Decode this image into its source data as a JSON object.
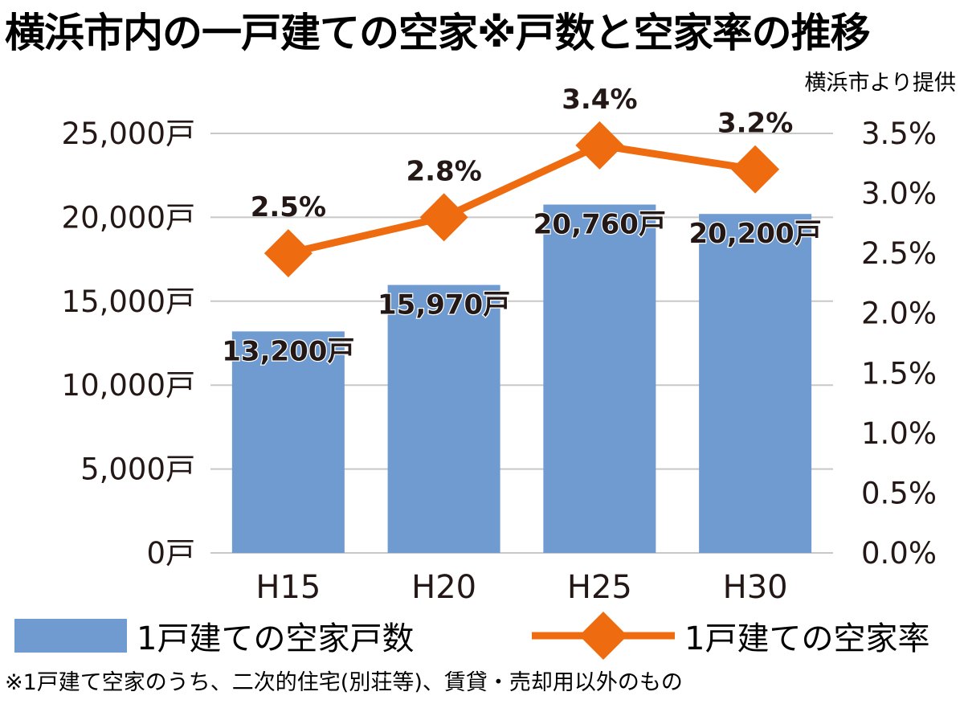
{
  "title": "横浜市内の一戸建ての空家※戸数と空家率の推移",
  "source": "横浜市より提供",
  "footnote": "※1戸建て空家のうち、二次的住宅(別荘等)、賃貸・売却用以外のもの",
  "colors": {
    "bar": "#6f9bd1",
    "line": "#ee6c0f",
    "grid": "#c8c8c8",
    "text": "#231815"
  },
  "chart_data": {
    "type": "bar+line",
    "categories": [
      "H15",
      "H20",
      "H25",
      "H30"
    ],
    "series": [
      {
        "name": "1戸建ての空家戸数",
        "type": "bar",
        "axis": "left",
        "values": [
          13200,
          15970,
          20760,
          20200
        ],
        "labels": [
          "13,200戸",
          "15,970戸",
          "20,760戸",
          "20,200戸"
        ]
      },
      {
        "name": "1戸建ての空家率",
        "type": "line",
        "marker": "diamond",
        "axis": "right",
        "values": [
          2.5,
          2.8,
          3.4,
          3.2
        ],
        "labels": [
          "2.5%",
          "2.8%",
          "3.4%",
          "3.2%"
        ]
      }
    ],
    "y_left": {
      "ylim": [
        0,
        25000
      ],
      "ticks": [
        0,
        5000,
        10000,
        15000,
        20000,
        25000
      ],
      "tick_labels": [
        "0戸",
        "5,000戸",
        "10,000戸",
        "15,000戸",
        "20,000戸",
        "25,000戸"
      ]
    },
    "y_right": {
      "ylim": [
        0,
        3.5
      ],
      "ticks": [
        0,
        0.5,
        1.0,
        1.5,
        2.0,
        2.5,
        3.0,
        3.5
      ],
      "tick_labels": [
        "0.0%",
        "0.5%",
        "1.0%",
        "1.5%",
        "2.0%",
        "2.5%",
        "3.0%",
        "3.5%"
      ]
    },
    "grid": true,
    "legend_position": "bottom"
  }
}
